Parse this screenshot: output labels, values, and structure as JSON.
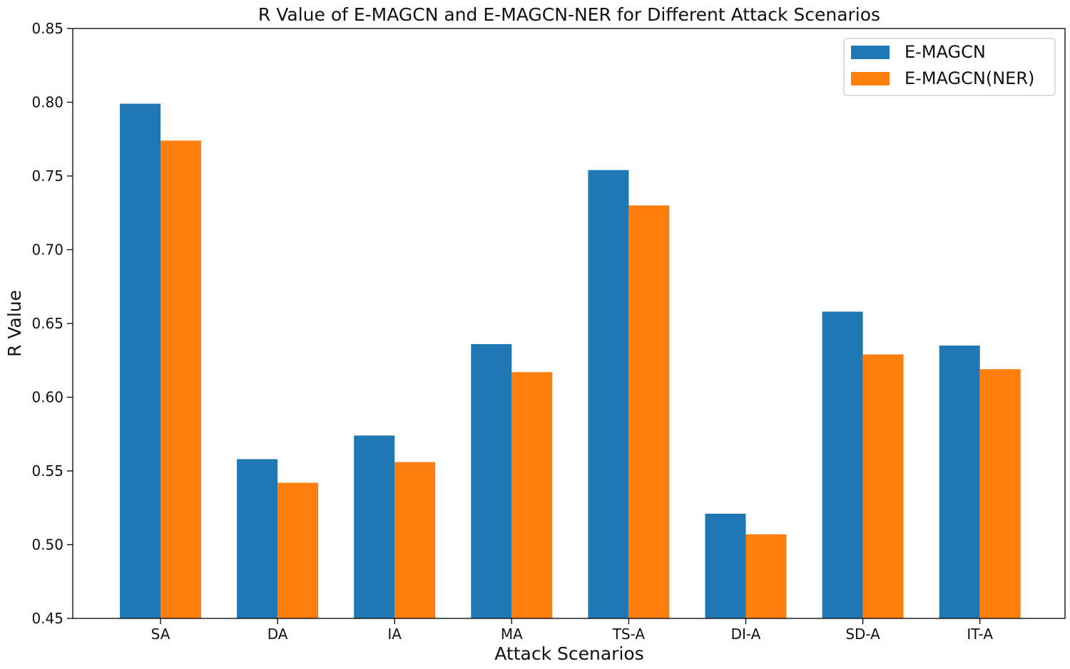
{
  "chart_data": {
    "type": "bar",
    "title": "R Value of E-MAGCN and E-MAGCN-NER for Different Attack Scenarios",
    "xlabel": "Attack Scenarios",
    "ylabel": "R Value",
    "categories": [
      "SA",
      "DA",
      "IA",
      "MA",
      "TS-A",
      "DI-A",
      "SD-A",
      "IT-A"
    ],
    "ylim": [
      0.45,
      0.85
    ],
    "yticks": [
      "0.45",
      "0.50",
      "0.55",
      "0.60",
      "0.65",
      "0.70",
      "0.75",
      "0.80",
      "0.85"
    ],
    "grid": false,
    "legend_position": "top-right",
    "series": [
      {
        "name": "E-MAGCN",
        "color": "#1f77b4",
        "values": [
          0.799,
          0.558,
          0.574,
          0.636,
          0.754,
          0.521,
          0.658,
          0.635
        ]
      },
      {
        "name": "E-MAGCN(NER)",
        "color": "#ff7f0e",
        "values": [
          0.774,
          0.542,
          0.556,
          0.617,
          0.73,
          0.507,
          0.629,
          0.619
        ]
      }
    ]
  }
}
